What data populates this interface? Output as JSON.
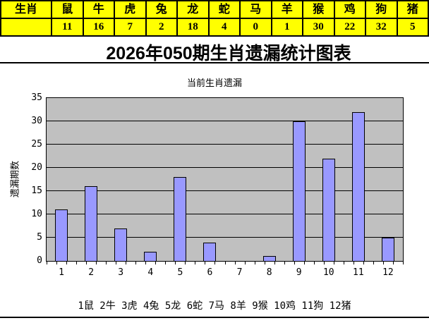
{
  "page_title": "2026年050期生肖遗漏统计图表",
  "zodiac_table": {
    "header": [
      "生肖",
      "鼠",
      "牛",
      "虎",
      "兔",
      "龙",
      "蛇",
      "马",
      "羊",
      "猴",
      "鸡",
      "狗",
      "猪"
    ],
    "values": [
      "",
      "11",
      "16",
      "7",
      "2",
      "18",
      "4",
      "0",
      "1",
      "30",
      "22",
      "32",
      "5"
    ]
  },
  "chart_data": {
    "type": "bar",
    "title": "当前生肖遗漏",
    "ylabel": "遗漏期数",
    "xlabel": "",
    "categories": [
      "1",
      "2",
      "3",
      "4",
      "5",
      "6",
      "7",
      "8",
      "9",
      "10",
      "11",
      "12"
    ],
    "values": [
      11,
      16,
      7,
      2,
      18,
      4,
      0,
      1,
      30,
      22,
      32,
      5
    ],
    "ylim": [
      0,
      35
    ],
    "yticks": [
      0,
      5,
      10,
      15,
      20,
      25,
      30,
      35
    ],
    "grid": true,
    "legend_position": "bottom",
    "plot_bg": "#C0C0C0",
    "bar_color": "#9999FF"
  },
  "footer_legend": "1鼠 2牛 3虎 4兔 5龙 6蛇 7马 8羊 9猴 10鸡 11狗 12猪",
  "colors": {
    "table_bg": "#FFFF00",
    "table_text": "#000000",
    "bar": "#9999FF",
    "plot_bg": "#C0C0C0",
    "grid": "#000000",
    "divider": "#000000"
  }
}
